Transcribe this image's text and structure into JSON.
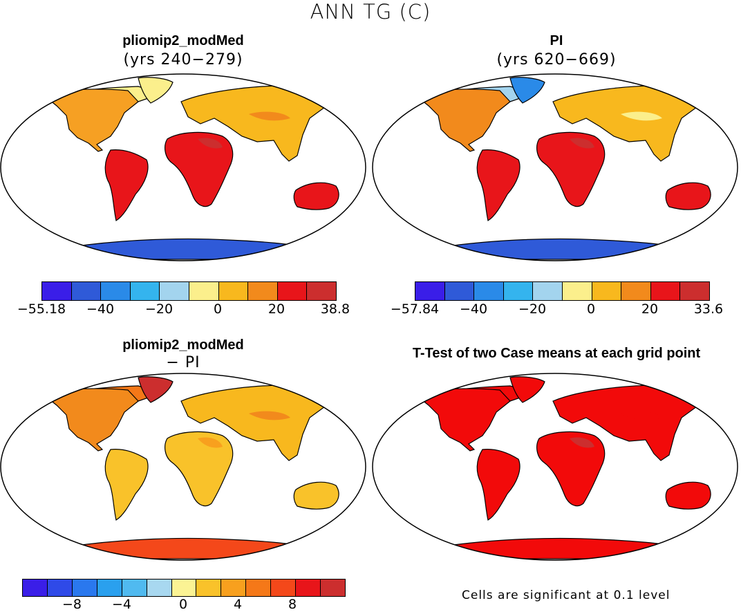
{
  "figure": {
    "title": "ANN TG (C)"
  },
  "panels": [
    {
      "title": "pliomip2_modMed",
      "subtitle": "(yrs 240−279)"
    },
    {
      "title": "PI",
      "subtitle": "(yrs 620−669)"
    },
    {
      "title": "pliomip2_modMed",
      "subtitle": "− PI"
    },
    {
      "title": "T-Test of two Case means at each grid point",
      "subtitle": ""
    }
  ],
  "colorbars": [
    {
      "colors": [
        "#3a1ee8",
        "#2f5ad8",
        "#2a8ae8",
        "#34b4ee",
        "#a3d4ee",
        "#fbef8c",
        "#f8b81e",
        "#f28a1c",
        "#e8151a",
        "#cc2e2e"
      ],
      "labels": [
        "−55.18",
        "−40",
        "−20",
        "0",
        "20",
        "38.8"
      ]
    },
    {
      "colors": [
        "#3a1ee8",
        "#2f5ad8",
        "#2a8ae8",
        "#34b4ee",
        "#a3d4ee",
        "#fbef8c",
        "#f8b81e",
        "#f28a1c",
        "#e8151a",
        "#cc2e2e"
      ],
      "labels": [
        "−57.84",
        "−40",
        "−20",
        "0",
        "20",
        "33.6"
      ]
    },
    {
      "colors": [
        "#3a1ee8",
        "#2f4ae8",
        "#2a78ee",
        "#2aa0ee",
        "#50baf0",
        "#a8d8f0",
        "#fbf394",
        "#f9c22a",
        "#f8a01e",
        "#f57818",
        "#f4481a",
        "#e8151a",
        "#cc2e2e"
      ],
      "labels": [
        "−8",
        "−4",
        "0",
        "4",
        "8"
      ]
    }
  ],
  "note": "Cells are significant at 0.1 level",
  "map_fills": [
    {
      "americas": "#f6a023",
      "eurasia": "#f8b81e",
      "africa": "#e8151a",
      "australia": "#e8151a",
      "southamerica": "#e8151a",
      "antarctica": "#2f5ad8",
      "greenland": "#fbef8c",
      "north": "#fbef8c"
    },
    {
      "americas": "#f28a1c",
      "eurasia": "#f8b81e",
      "africa": "#e8151a",
      "australia": "#e8151a",
      "southamerica": "#e8151a",
      "antarctica": "#2f5ad8",
      "greenland": "#2a8ae8",
      "north": "#a3d4ee"
    },
    {
      "americas": "#f28a1c",
      "eurasia": "#f8b81e",
      "africa": "#f9c22a",
      "australia": "#f9c22a",
      "southamerica": "#f9c22a",
      "antarctica": "#f4481a",
      "greenland": "#cc2e2e",
      "north": "#f57818"
    },
    {
      "americas": "#f20a0a",
      "eurasia": "#f20a0a",
      "africa": "#f20a0a",
      "australia": "#f20a0a",
      "southamerica": "#f20a0a",
      "antarctica": "#f20a0a",
      "greenland": "#f20a0a",
      "north": "#f20a0a"
    }
  ]
}
